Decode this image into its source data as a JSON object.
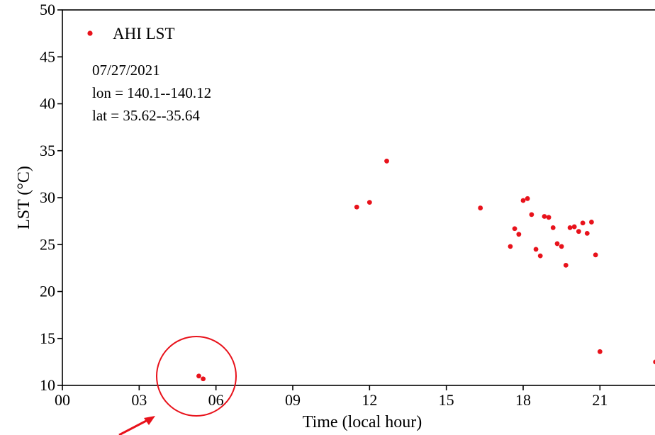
{
  "chart_data": {
    "type": "scatter",
    "xlabel": "Time (local hour)",
    "ylabel": "LST (°C)",
    "xlim": [
      0,
      23.4
    ],
    "ylim": [
      10,
      50
    ],
    "x_ticks": [
      0,
      3,
      6,
      9,
      12,
      15,
      18,
      21
    ],
    "x_tick_labels": [
      "00",
      "03",
      "06",
      "09",
      "12",
      "15",
      "18",
      "21"
    ],
    "y_ticks": [
      10,
      15,
      20,
      25,
      30,
      35,
      40,
      45,
      50
    ],
    "y_tick_labels": [
      "10",
      "15",
      "20",
      "25",
      "30",
      "35",
      "40",
      "45",
      "50"
    ],
    "grid": false,
    "legend_position": "top-left",
    "series": [
      {
        "name": "AHI LST",
        "color": "#e8121b",
        "points": [
          {
            "x": 5.33,
            "y": 11.0
          },
          {
            "x": 5.5,
            "y": 10.7
          },
          {
            "x": 11.5,
            "y": 29.0
          },
          {
            "x": 12.0,
            "y": 29.5
          },
          {
            "x": 12.67,
            "y": 33.9
          },
          {
            "x": 16.33,
            "y": 28.9
          },
          {
            "x": 17.5,
            "y": 24.8
          },
          {
            "x": 17.67,
            "y": 26.7
          },
          {
            "x": 17.83,
            "y": 26.1
          },
          {
            "x": 18.0,
            "y": 29.7
          },
          {
            "x": 18.17,
            "y": 29.9
          },
          {
            "x": 18.33,
            "y": 28.2
          },
          {
            "x": 18.5,
            "y": 24.5
          },
          {
            "x": 18.67,
            "y": 23.8
          },
          {
            "x": 18.83,
            "y": 28.0
          },
          {
            "x": 19.0,
            "y": 27.9
          },
          {
            "x": 19.17,
            "y": 26.8
          },
          {
            "x": 19.33,
            "y": 25.1
          },
          {
            "x": 19.5,
            "y": 24.8
          },
          {
            "x": 19.67,
            "y": 22.8
          },
          {
            "x": 19.83,
            "y": 26.8
          },
          {
            "x": 20.0,
            "y": 26.9
          },
          {
            "x": 20.17,
            "y": 26.4
          },
          {
            "x": 20.33,
            "y": 27.3
          },
          {
            "x": 20.5,
            "y": 26.2
          },
          {
            "x": 20.67,
            "y": 27.4
          },
          {
            "x": 20.83,
            "y": 23.9
          },
          {
            "x": 21.0,
            "y": 13.6
          },
          {
            "x": 23.17,
            "y": 12.5
          }
        ]
      }
    ],
    "annotations": {
      "date": "07/27/2021",
      "lon": "lon = 140.1--140.12",
      "lat": "lat = 35.62--35.64",
      "highlight": {
        "shape": "circle",
        "color": "#e8121b",
        "around_x": 5.4,
        "around_y": 10.9,
        "with_arrow": true
      }
    }
  }
}
